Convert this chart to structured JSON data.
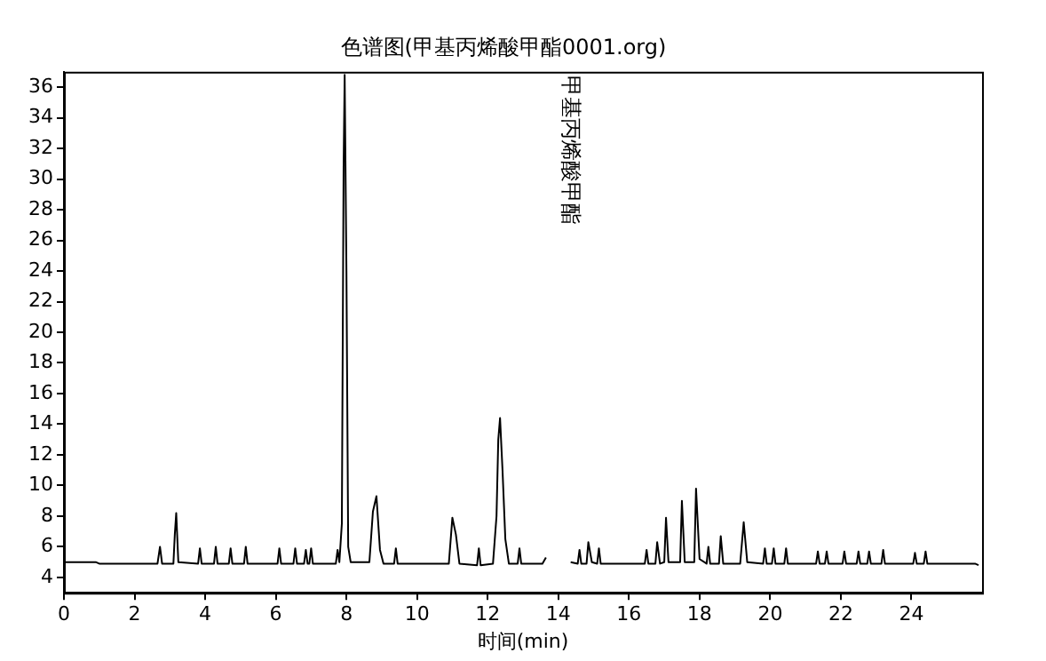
{
  "chart_data": {
    "type": "line",
    "title": "色谱图(甲基丙烯酸甲酯0001.org)",
    "xlabel": "时间(min)",
    "x": [
      0,
      0.9,
      1.0,
      2.65,
      2.72,
      2.78,
      3.1,
      3.14,
      3.18,
      3.24,
      3.8,
      3.85,
      3.9,
      4.25,
      4.3,
      4.35,
      4.67,
      4.72,
      4.77,
      5.1,
      5.15,
      5.2,
      6.05,
      6.1,
      6.15,
      6.5,
      6.55,
      6.6,
      6.8,
      6.85,
      6.9,
      6.95,
      7.0,
      7.05,
      7.7,
      7.75,
      7.8,
      7.87,
      7.92,
      7.95,
      8.0,
      8.05,
      8.12,
      8.65,
      8.75,
      8.85,
      8.95,
      9.05,
      9.35,
      9.4,
      9.45,
      10.9,
      11.0,
      11.1,
      11.2,
      11.7,
      11.75,
      11.8,
      12.15,
      12.25,
      12.3,
      12.35,
      12.42,
      12.5,
      12.6,
      12.85,
      12.9,
      12.95,
      13.55,
      13.65,
      13.7,
      14.3,
      14.35,
      14.55,
      14.6,
      14.65,
      14.8,
      14.85,
      14.95,
      15.1,
      15.15,
      15.2,
      16.45,
      16.5,
      16.55,
      16.75,
      16.8,
      16.88,
      17.0,
      17.05,
      17.12,
      17.45,
      17.5,
      17.58,
      17.85,
      17.9,
      18.0,
      18.2,
      18.25,
      18.3,
      18.55,
      18.6,
      18.67,
      19.15,
      19.25,
      19.35,
      19.8,
      19.85,
      19.9,
      20.05,
      20.1,
      20.15,
      20.4,
      20.45,
      20.5,
      21.3,
      21.35,
      21.4,
      21.55,
      21.6,
      21.65,
      22.05,
      22.1,
      22.15,
      22.45,
      22.5,
      22.55,
      22.75,
      22.8,
      22.85,
      23.15,
      23.2,
      23.25,
      24.05,
      24.1,
      24.15,
      24.35,
      24.4,
      24.45,
      25.8,
      25.9
    ],
    "series": [
      {
        "color": "#000000",
        "values": [
          5.0,
          5.0,
          4.9,
          4.9,
          6.0,
          4.9,
          4.9,
          6.8,
          8.2,
          5.0,
          4.9,
          5.9,
          4.9,
          4.9,
          6.0,
          4.9,
          4.9,
          5.9,
          4.9,
          4.9,
          6.0,
          4.9,
          4.9,
          5.9,
          4.9,
          4.9,
          5.9,
          4.9,
          4.9,
          5.8,
          4.9,
          4.9,
          5.9,
          4.9,
          4.9,
          5.8,
          5.0,
          7.5,
          30.8,
          36.8,
          24,
          6.0,
          5.0,
          5.0,
          8.3,
          9.3,
          5.8,
          4.9,
          4.9,
          5.9,
          4.9,
          4.9,
          7.9,
          6.8,
          4.9,
          4.8,
          5.9,
          4.8,
          4.9,
          8.0,
          13.0,
          14.4,
          11.0,
          6.5,
          4.9,
          4.9,
          5.9,
          4.9,
          4.9,
          5.3,
          null,
          null,
          5.0,
          4.9,
          5.8,
          4.9,
          4.9,
          6.3,
          5.0,
          4.9,
          5.9,
          4.9,
          4.9,
          5.8,
          4.9,
          4.9,
          6.3,
          4.9,
          5.0,
          7.9,
          5.0,
          5.0,
          9.0,
          5.0,
          5.0,
          9.8,
          5.2,
          4.9,
          6.0,
          4.9,
          4.9,
          6.7,
          4.9,
          4.9,
          7.6,
          5.0,
          4.9,
          5.9,
          4.9,
          4.9,
          5.9,
          4.9,
          4.9,
          5.9,
          4.9,
          4.9,
          5.7,
          4.9,
          4.9,
          5.7,
          4.9,
          4.9,
          5.7,
          4.9,
          4.9,
          5.7,
          4.9,
          4.9,
          5.7,
          4.9,
          4.9,
          5.8,
          4.9,
          4.9,
          5.6,
          4.9,
          4.9,
          5.7,
          4.9,
          4.9,
          4.8
        ]
      }
    ],
    "xlim": [
      0,
      26
    ],
    "xticks": [
      0,
      2,
      4,
      6,
      8,
      10,
      12,
      14,
      16,
      18,
      20,
      22,
      24
    ],
    "ylim": [
      3,
      37
    ],
    "yticks": [
      4,
      6,
      8,
      10,
      12,
      14,
      16,
      18,
      20,
      22,
      24,
      26,
      28,
      30,
      32,
      34,
      36
    ],
    "annotations": [
      "甲基丙烯酸甲酯"
    ],
    "grid": false,
    "legend": false,
    "marker": "none",
    "line_style": "solid"
  }
}
